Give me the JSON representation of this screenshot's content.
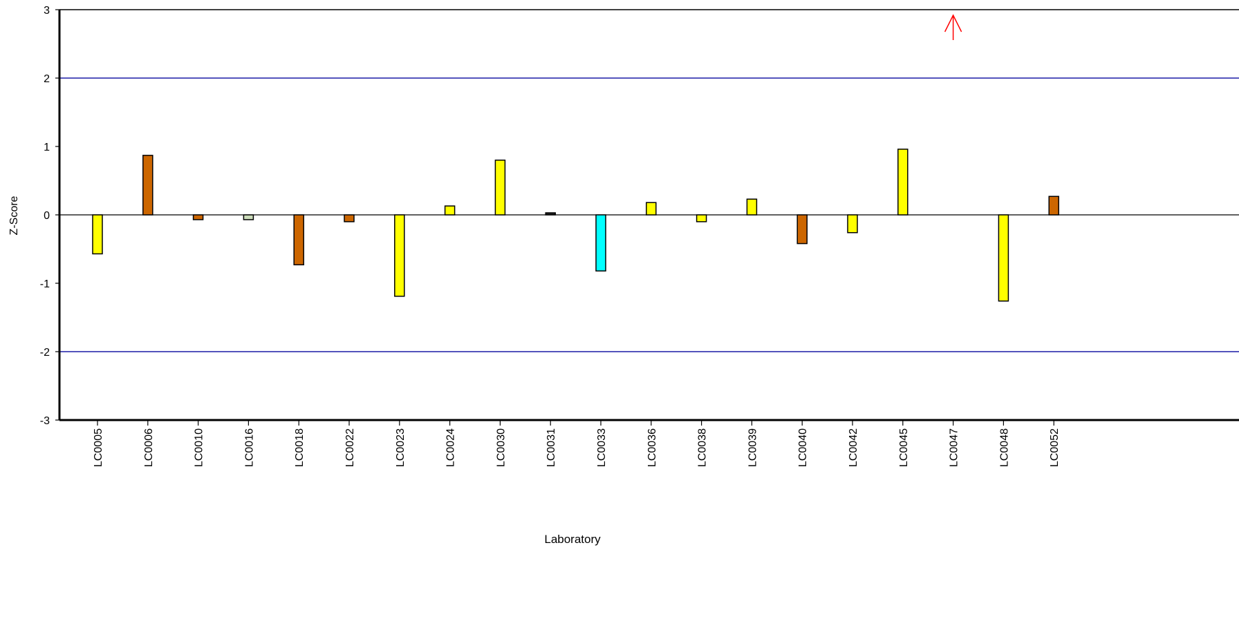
{
  "chart_data": {
    "type": "bar",
    "xlabel": "Laboratory",
    "ylabel": "Z-Score",
    "ylim": [
      -3,
      3
    ],
    "yticks": [
      "3",
      "2",
      "1",
      "0",
      "-1",
      "-2",
      "-3"
    ],
    "ytick_values": [
      3,
      2,
      1,
      0,
      -1,
      -2,
      -3
    ],
    "reference_lines": [
      2,
      -2
    ],
    "reference_line_color": "#1a1aa6",
    "categories": [
      "LC0005",
      "LC0006",
      "LC0010",
      "LC0016",
      "LC0018",
      "LC0022",
      "LC0023",
      "LC0024",
      "LC0030",
      "LC0031",
      "LC0033",
      "LC0036",
      "LC0038",
      "LC0039",
      "LC0040",
      "LC0042",
      "LC0045",
      "LC0047",
      "LC0048",
      "LC0052"
    ],
    "values": [
      -0.57,
      0.87,
      -0.07,
      -0.07,
      -0.73,
      -0.1,
      -1.19,
      0.13,
      0.8,
      0.03,
      -0.82,
      0.18,
      -0.1,
      0.23,
      -0.42,
      -0.26,
      0.96,
      null,
      -1.26,
      0.27
    ],
    "colors": [
      "#ffff00",
      "#cc6600",
      "#cc6600",
      "#ccddbb",
      "#cc6600",
      "#cc6600",
      "#ffff00",
      "#ffff00",
      "#ffff00",
      "#222222",
      "#00ffff",
      "#ffff00",
      "#ffff00",
      "#ffff00",
      "#cc6600",
      "#ffff00",
      "#ffff00",
      "#ffffff",
      "#ffff00",
      "#cc6600"
    ],
    "off_scale": [
      {
        "category": "LC0047",
        "direction": "up",
        "marker_color": "#ff0000"
      }
    ],
    "grid": false
  }
}
